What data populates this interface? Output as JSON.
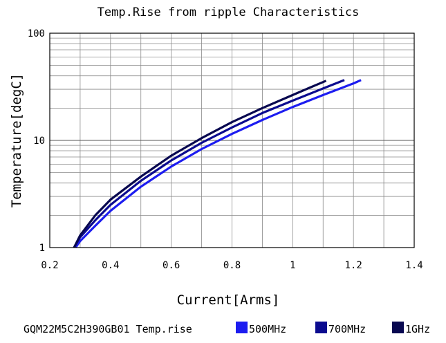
{
  "chart_data": {
    "type": "line",
    "title": "Temp.Rise from ripple Characteristics",
    "xlabel": "Current[Arms]",
    "ylabel": "Temperature[degC]",
    "x_scale": "linear",
    "y_scale": "log",
    "xlim": [
      0.2,
      1.4
    ],
    "ylim": [
      1,
      100
    ],
    "x_ticks": [
      "0.2",
      "0.4",
      "0.6",
      "0.8",
      "1",
      "1.2",
      "1.4"
    ],
    "y_ticks": [
      "1",
      "10",
      "100"
    ],
    "grid": true,
    "legend_title": "GQM22M5C2H390GB01 Temp.rise",
    "legend_position": "bottom",
    "series": [
      {
        "name": "500MHz",
        "color": "#1c1cf0",
        "points": [
          [
            0.285,
            1.0
          ],
          [
            0.3,
            1.15
          ],
          [
            0.35,
            1.6
          ],
          [
            0.4,
            2.2
          ],
          [
            0.5,
            3.7
          ],
          [
            0.6,
            5.7
          ],
          [
            0.7,
            8.3
          ],
          [
            0.8,
            11.5
          ],
          [
            0.9,
            15.5
          ],
          [
            1.0,
            20.5
          ],
          [
            1.1,
            26.5
          ],
          [
            1.2,
            34.0
          ],
          [
            1.225,
            36.5
          ]
        ]
      },
      {
        "name": "700MHz",
        "color": "#0b0b8f",
        "points": [
          [
            0.28,
            1.0
          ],
          [
            0.3,
            1.25
          ],
          [
            0.35,
            1.8
          ],
          [
            0.4,
            2.5
          ],
          [
            0.5,
            4.2
          ],
          [
            0.6,
            6.5
          ],
          [
            0.7,
            9.5
          ],
          [
            0.8,
            13.2
          ],
          [
            0.9,
            18.0
          ],
          [
            1.0,
            23.5
          ],
          [
            1.1,
            30.5
          ],
          [
            1.17,
            36.5
          ]
        ]
      },
      {
        "name": "1GHz",
        "color": "#080850",
        "points": [
          [
            0.28,
            1.0
          ],
          [
            0.3,
            1.3
          ],
          [
            0.35,
            2.0
          ],
          [
            0.4,
            2.8
          ],
          [
            0.5,
            4.6
          ],
          [
            0.6,
            7.2
          ],
          [
            0.7,
            10.5
          ],
          [
            0.8,
            14.8
          ],
          [
            0.9,
            20.0
          ],
          [
            1.0,
            26.5
          ],
          [
            1.05,
            30.5
          ],
          [
            1.11,
            36.0
          ]
        ]
      }
    ]
  }
}
